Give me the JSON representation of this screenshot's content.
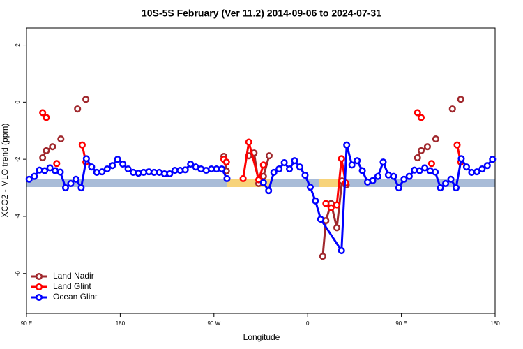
{
  "chart_data": {
    "type": "line",
    "title": "10S-5S February (Ver 11.2)   2014-09-06 to 2024-07-31",
    "xlabel": "Longitude",
    "ylabel": "XCO2 - MLO trend (ppm)",
    "xlim": [
      90,
      540
    ],
    "ylim": [
      -7.4,
      2.6
    ],
    "xticks": [
      {
        "value": 90,
        "label": "90 E"
      },
      {
        "value": 180,
        "label": "180"
      },
      {
        "value": 270,
        "label": "90 W"
      },
      {
        "value": 360,
        "label": "0"
      },
      {
        "value": 450,
        "label": "90 E"
      },
      {
        "value": 540,
        "label": "180"
      }
    ],
    "yticks": [
      2,
      0,
      -2,
      -4,
      -6
    ],
    "legend": "lower left",
    "series": [
      {
        "name": "Land Nadir",
        "color": "#a0282d",
        "x": [
          105.5,
          109,
          115,
          null,
          123,
          null,
          139,
          null,
          147,
          null,
          279.5,
          282,
          null,
          303.5,
          308.5,
          313,
          317.5,
          323,
          null,
          374.5,
          377.5,
          382.5,
          388,
          393,
          397,
          null,
          465.5,
          469,
          475,
          null,
          483,
          null,
          499,
          null,
          507
        ],
        "values": [
          -1.95,
          -1.7,
          -1.56,
          null,
          -1.29,
          null,
          -0.24,
          null,
          0.1,
          null,
          -1.9,
          -2.41,
          null,
          -1.88,
          -1.78,
          -2.85,
          -2.6,
          -1.88,
          null,
          -5.4,
          -4.15,
          -3.55,
          -4.4,
          -2.76,
          -2.9,
          null,
          -1.95,
          -1.7,
          -1.56,
          null,
          -1.29,
          null,
          -0.24,
          null,
          0.1
        ]
      },
      {
        "name": "Land Glint",
        "color": "#ff0000",
        "x": [
          105.5,
          109,
          null,
          119,
          null,
          143.5,
          147,
          null,
          279.5,
          282,
          null,
          298,
          303.5,
          313,
          317.5,
          null,
          377.5,
          382.5,
          388,
          392.5,
          396.5,
          null,
          465.5,
          469,
          null,
          479,
          null,
          503.5,
          507
        ],
        "values": [
          -0.37,
          -0.54,
          null,
          -2.15,
          null,
          -1.5,
          -2.1,
          null,
          -2.0,
          -2.1,
          null,
          -2.68,
          -1.4,
          -2.72,
          -2.2,
          null,
          -3.55,
          -3.7,
          -3.6,
          -1.98,
          -2.83,
          null,
          -0.37,
          -0.54,
          null,
          -2.15,
          null,
          -1.5,
          -2.1
        ]
      },
      {
        "name": "Ocean Glint",
        "color": "#0000ff",
        "x": [
          92.5,
          97.5,
          102.5,
          107.5,
          112.5,
          117.5,
          122.5,
          127.5,
          132.5,
          137.5,
          142.5,
          147.5,
          152.5,
          157.5,
          162.5,
          167.5,
          172.5,
          177.5,
          182.5,
          187.5,
          192.5,
          197.5,
          202.5,
          207.5,
          212.5,
          217.5,
          222.5,
          227.5,
          232.5,
          237.5,
          242.5,
          247.5,
          252.5,
          257.5,
          262.5,
          267.5,
          272.5,
          277.5,
          282.5,
          null,
          317.5,
          322.5,
          327.5,
          332.5,
          337.5,
          342.5,
          347.5,
          352.5,
          357.5,
          362.5,
          367.5,
          372.5,
          392.5,
          397.5,
          402.5,
          407.5,
          412.5,
          417.5,
          422.5,
          427.5,
          432.5,
          437.5,
          442.5,
          447.5,
          452.5,
          457.5,
          462.5,
          467.5,
          472.5,
          477.5,
          482.5,
          487.5,
          492.5,
          497.5,
          502.5,
          507.5,
          512.5,
          517.5,
          522.5,
          527.5,
          532.5,
          537.5
        ],
        "values": [
          -2.7,
          -2.6,
          -2.38,
          -2.4,
          -2.3,
          -2.4,
          -2.45,
          -3.0,
          -2.85,
          -2.7,
          -3.0,
          -1.98,
          -2.27,
          -2.46,
          -2.44,
          -2.34,
          -2.22,
          -2.0,
          -2.17,
          -2.34,
          -2.46,
          -2.49,
          -2.46,
          -2.44,
          -2.46,
          -2.46,
          -2.51,
          -2.51,
          -2.39,
          -2.39,
          -2.37,
          -2.17,
          -2.27,
          -2.34,
          -2.39,
          -2.34,
          -2.34,
          -2.34,
          -2.68,
          null,
          -2.82,
          -3.1,
          -2.46,
          -2.34,
          -2.12,
          -2.34,
          -2.05,
          -2.27,
          -2.56,
          -2.98,
          -3.46,
          -4.1,
          -5.2,
          -1.5,
          -2.2,
          -2.05,
          -2.4,
          -2.8,
          -2.75,
          -2.6,
          -2.1,
          -2.55,
          -2.6,
          -3.0,
          -2.7,
          -2.6,
          -2.38,
          -2.4,
          -2.3,
          -2.4,
          -2.45,
          -3.0,
          -2.85,
          -2.7,
          -3.0,
          -1.98,
          -2.27,
          -2.46,
          -2.44,
          -2.34,
          -2.22,
          -2.0
        ]
      }
    ]
  }
}
